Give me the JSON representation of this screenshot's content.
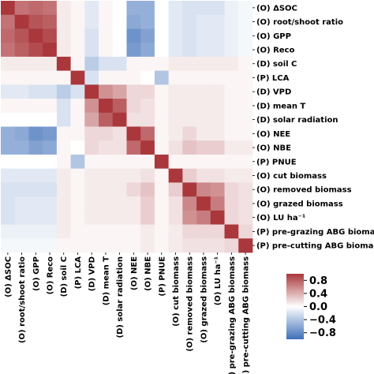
{
  "chart_data": {
    "type": "heatmap",
    "title": "",
    "xlabel": "",
    "ylabel": "",
    "labels": [
      "(O) ΔSOC",
      "(O) root/shoot ratio",
      "(O) GPP",
      "(O) Reco",
      "(D) soil C",
      "(P) LCA",
      "(D) VPD",
      "(D) mean T",
      "(D) solar radiation",
      "(O) NEE",
      "(O) NBE",
      "(P) PNUE",
      "(O) cut biomass",
      "(O) removed biomass",
      "(O) grazed biomass",
      "(O) LU ha⁻¹",
      "(P) pre-grazing ABG biomass",
      "(P) pre-cutting ABG biomass"
    ],
    "matrix": [
      [
        1.0,
        0.7,
        0.75,
        0.7,
        0.1,
        0.05,
        -0.15,
        0.05,
        0.0,
        -0.55,
        -0.55,
        0.0,
        -0.15,
        -0.2,
        -0.2,
        -0.2,
        -0.1,
        -0.05
      ],
      [
        0.7,
        1.0,
        0.85,
        0.8,
        0.1,
        0.05,
        -0.15,
        0.05,
        0.0,
        -0.6,
        -0.55,
        0.0,
        -0.15,
        -0.2,
        -0.15,
        -0.15,
        -0.1,
        -0.05
      ],
      [
        0.75,
        0.85,
        1.0,
        0.9,
        0.1,
        0.05,
        -0.2,
        0.05,
        0.0,
        -0.75,
        -0.65,
        0.0,
        -0.15,
        -0.2,
        -0.15,
        -0.15,
        -0.1,
        -0.05
      ],
      [
        0.7,
        0.8,
        0.9,
        1.0,
        0.1,
        0.05,
        -0.2,
        0.05,
        0.0,
        -0.7,
        -0.6,
        0.0,
        -0.15,
        -0.2,
        -0.15,
        -0.15,
        -0.1,
        -0.05
      ],
      [
        0.1,
        0.1,
        0.1,
        0.1,
        1.0,
        0.05,
        -0.35,
        -0.2,
        -0.2,
        0.05,
        0.05,
        0.05,
        0.1,
        0.1,
        0.1,
        0.1,
        0.1,
        0.05
      ],
      [
        0.05,
        0.05,
        0.05,
        0.05,
        0.05,
        1.0,
        -0.2,
        0.05,
        0.05,
        0.05,
        0.0,
        -0.4,
        0.05,
        0.05,
        0.05,
        0.05,
        0.05,
        0.05
      ],
      [
        -0.15,
        -0.15,
        -0.2,
        -0.2,
        -0.35,
        -0.2,
        1.0,
        0.55,
        0.45,
        0.2,
        0.2,
        0.05,
        0.1,
        0.1,
        0.1,
        0.1,
        0.05,
        0.05
      ],
      [
        0.05,
        0.05,
        0.05,
        0.05,
        -0.2,
        0.05,
        0.55,
        1.0,
        0.8,
        0.2,
        0.15,
        0.05,
        0.1,
        0.1,
        0.1,
        0.1,
        0.05,
        0.05
      ],
      [
        0.0,
        0.0,
        0.0,
        0.0,
        -0.2,
        0.05,
        0.45,
        0.8,
        1.0,
        0.15,
        0.15,
        0.05,
        0.1,
        0.1,
        0.1,
        0.1,
        0.05,
        0.05
      ],
      [
        -0.55,
        -0.6,
        -0.75,
        -0.7,
        0.05,
        0.05,
        0.2,
        0.2,
        0.15,
        1.0,
        0.75,
        0.05,
        0.1,
        0.2,
        0.1,
        0.1,
        0.05,
        0.05
      ],
      [
        -0.55,
        -0.55,
        -0.65,
        -0.6,
        0.05,
        0.0,
        0.2,
        0.15,
        0.15,
        0.75,
        1.0,
        0.05,
        0.15,
        0.3,
        0.25,
        0.25,
        0.1,
        0.1
      ],
      [
        0.0,
        0.0,
        0.0,
        0.0,
        0.05,
        -0.4,
        0.05,
        0.05,
        0.05,
        0.05,
        0.05,
        1.0,
        0.05,
        0.05,
        0.05,
        0.05,
        0.05,
        0.05
      ],
      [
        -0.15,
        -0.15,
        -0.15,
        -0.15,
        0.1,
        0.05,
        0.1,
        0.1,
        0.1,
        0.1,
        0.15,
        0.05,
        1.0,
        0.25,
        0.15,
        0.15,
        0.1,
        0.1
      ],
      [
        -0.2,
        -0.2,
        -0.2,
        -0.2,
        0.1,
        0.05,
        0.1,
        0.1,
        0.1,
        0.2,
        0.3,
        0.05,
        0.25,
        1.0,
        0.6,
        0.55,
        0.2,
        0.15
      ],
      [
        -0.2,
        -0.15,
        -0.15,
        -0.15,
        0.1,
        0.05,
        0.1,
        0.1,
        0.1,
        0.1,
        0.25,
        0.05,
        0.15,
        0.6,
        1.0,
        0.65,
        0.2,
        0.15
      ],
      [
        -0.2,
        -0.15,
        -0.15,
        -0.15,
        0.1,
        0.05,
        0.1,
        0.1,
        0.1,
        0.1,
        0.25,
        0.05,
        0.15,
        0.55,
        0.65,
        1.0,
        0.2,
        0.15
      ],
      [
        -0.1,
        -0.1,
        -0.1,
        -0.1,
        0.1,
        0.05,
        0.05,
        0.05,
        0.05,
        0.05,
        0.1,
        0.05,
        0.1,
        0.2,
        0.2,
        0.2,
        1.0,
        0.2
      ],
      [
        -0.05,
        -0.05,
        -0.05,
        -0.05,
        0.05,
        0.05,
        0.05,
        0.05,
        0.05,
        0.05,
        0.1,
        0.05,
        0.1,
        0.15,
        0.15,
        0.15,
        0.2,
        1.0
      ]
    ],
    "vmin": -1,
    "vmax": 1,
    "colormap": "vlag",
    "colorbar_ticks": [
      0.8,
      0.4,
      0.0,
      -0.4,
      -0.8
    ],
    "colorbar_tick_labels": [
      "0.8",
      "0.4",
      "0.0",
      "−0.4",
      "−0.8"
    ],
    "colors": {
      "negative": "#3e6fb8",
      "neutral": "#ffffff",
      "positive": "#a9373b"
    }
  }
}
